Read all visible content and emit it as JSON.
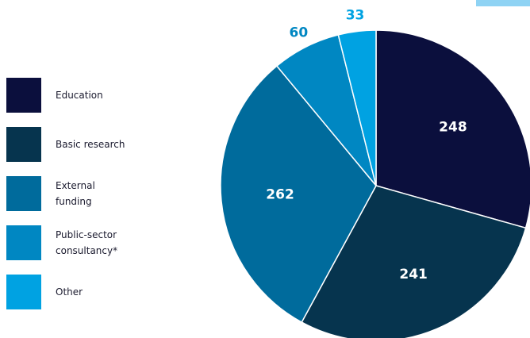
{
  "chart_data": {
    "type": "pie",
    "categories": [
      "Education",
      "Basic research",
      "External funding",
      "Public-sector consultancy*",
      "Other"
    ],
    "values": [
      248,
      241,
      262,
      60,
      33
    ],
    "colors": [
      "#0b0f3d",
      "#06344e",
      "#006b9c",
      "#0087c2",
      "#00a2e2"
    ]
  }
}
